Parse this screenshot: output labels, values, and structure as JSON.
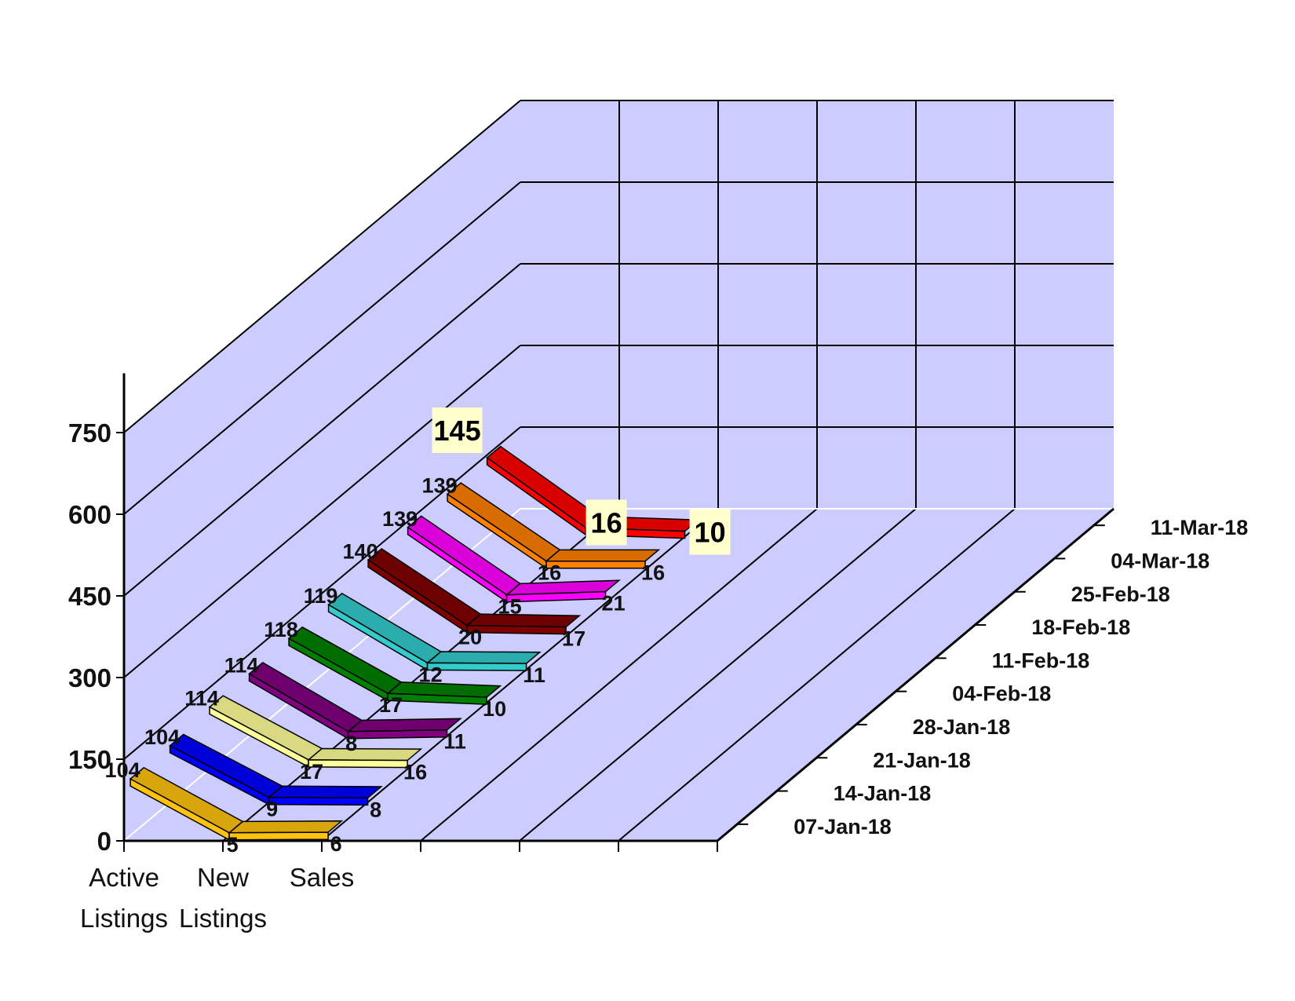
{
  "chart_data": {
    "type": "line",
    "title": "",
    "ylim": [
      0,
      750
    ],
    "y_ticks": [
      "0",
      "150",
      "300",
      "450",
      "600",
      "750"
    ],
    "categories": [
      {
        "line1": "Active",
        "line2": "Listings"
      },
      {
        "line1": "New",
        "line2": "Listings"
      },
      {
        "line1": "Sales",
        "line2": ""
      }
    ],
    "series": [
      {
        "name": "07-Jan-18",
        "values": [
          104,
          5,
          6
        ],
        "color": "#FFC20E"
      },
      {
        "name": "14-Jan-18",
        "values": [
          104,
          9,
          8
        ],
        "color": "#0000FF"
      },
      {
        "name": "21-Jan-18",
        "values": [
          114,
          17,
          16
        ],
        "color": "#FFFF99"
      },
      {
        "name": "28-Jan-18",
        "values": [
          114,
          8,
          11
        ],
        "color": "#800080"
      },
      {
        "name": "04-Feb-18",
        "values": [
          118,
          17,
          10
        ],
        "color": "#008000"
      },
      {
        "name": "11-Feb-18",
        "values": [
          119,
          12,
          11
        ],
        "color": "#33CCCC"
      },
      {
        "name": "18-Feb-18",
        "values": [
          140,
          20,
          17
        ],
        "color": "#800000"
      },
      {
        "name": "25-Feb-18",
        "values": [
          139,
          15,
          21
        ],
        "color": "#FF00FF"
      },
      {
        "name": "04-Mar-18",
        "values": [
          139,
          16,
          16
        ],
        "color": "#FF7F00"
      },
      {
        "name": "11-Mar-18",
        "values": [
          145,
          16,
          10
        ],
        "color": "#FF0000"
      }
    ],
    "highlight_series": "11-Mar-18",
    "wall_color": "#CCCCFF",
    "grid": true,
    "view": "3d-perspective"
  }
}
